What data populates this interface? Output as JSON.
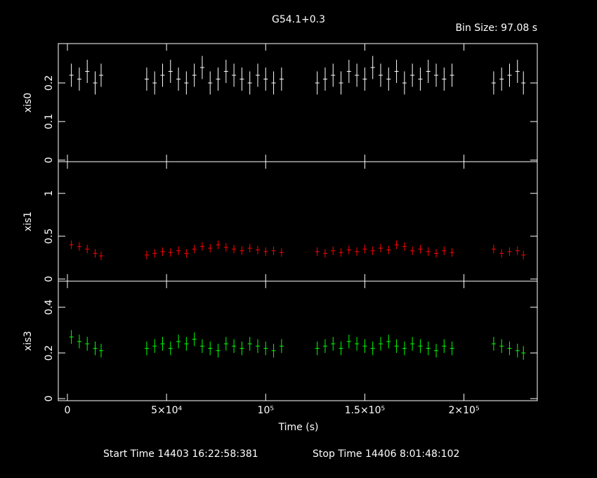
{
  "chart_data": [
    {
      "type": "errorbar",
      "title": "G54.1+0.3",
      "subtitle": "Bin Size: 97.08 s",
      "ylabel": "xis0",
      "color": "#ffffff",
      "xlim": [
        -4600,
        237000
      ],
      "ylim": [
        -0.004,
        0.302
      ],
      "yticks": [
        0,
        0.1,
        0.2
      ],
      "x": [
        2000,
        6000,
        10000,
        14000,
        17000,
        40000,
        44000,
        48000,
        52000,
        56000,
        60000,
        64000,
        68000,
        72000,
        76000,
        80000,
        84000,
        88000,
        92000,
        96000,
        100000,
        104000,
        108000,
        126000,
        130000,
        134000,
        138000,
        142000,
        146000,
        150000,
        154000,
        158000,
        162000,
        166000,
        170000,
        174000,
        178000,
        182000,
        186000,
        190000,
        194000,
        215000,
        219000,
        223000,
        227000,
        230000
      ],
      "values": [
        0.22,
        0.21,
        0.23,
        0.2,
        0.22,
        0.21,
        0.2,
        0.22,
        0.23,
        0.21,
        0.2,
        0.22,
        0.24,
        0.2,
        0.21,
        0.23,
        0.22,
        0.21,
        0.2,
        0.22,
        0.21,
        0.2,
        0.21,
        0.2,
        0.21,
        0.22,
        0.2,
        0.23,
        0.22,
        0.21,
        0.24,
        0.22,
        0.21,
        0.23,
        0.2,
        0.22,
        0.21,
        0.23,
        0.22,
        0.21,
        0.22,
        0.2,
        0.21,
        0.22,
        0.23,
        0.2
      ],
      "errors": [
        0.03,
        0.03,
        0.03,
        0.03,
        0.03,
        0.03,
        0.03,
        0.03,
        0.03,
        0.03,
        0.03,
        0.03,
        0.03,
        0.03,
        0.03,
        0.03,
        0.03,
        0.03,
        0.03,
        0.03,
        0.03,
        0.03,
        0.03,
        0.03,
        0.03,
        0.03,
        0.03,
        0.03,
        0.03,
        0.03,
        0.03,
        0.03,
        0.03,
        0.03,
        0.03,
        0.03,
        0.03,
        0.03,
        0.03,
        0.03,
        0.03,
        0.03,
        0.03,
        0.03,
        0.03,
        0.03
      ]
    },
    {
      "type": "errorbar",
      "ylabel": "xis1",
      "color": "#ff0000",
      "xlim": [
        -4600,
        237000
      ],
      "ylim": [
        -0.025,
        1.37
      ],
      "yticks": [
        0,
        0.5,
        1
      ],
      "x": [
        2000,
        6000,
        10000,
        14000,
        17000,
        40000,
        44000,
        48000,
        52000,
        56000,
        60000,
        64000,
        68000,
        72000,
        76000,
        80000,
        84000,
        88000,
        92000,
        96000,
        100000,
        104000,
        108000,
        126000,
        130000,
        134000,
        138000,
        142000,
        146000,
        150000,
        154000,
        158000,
        162000,
        166000,
        170000,
        174000,
        178000,
        182000,
        186000,
        190000,
        194000,
        215000,
        219000,
        223000,
        227000,
        230000
      ],
      "values": [
        0.4,
        0.38,
        0.35,
        0.3,
        0.27,
        0.28,
        0.3,
        0.32,
        0.31,
        0.33,
        0.3,
        0.35,
        0.38,
        0.36,
        0.4,
        0.37,
        0.35,
        0.33,
        0.36,
        0.34,
        0.32,
        0.33,
        0.31,
        0.32,
        0.3,
        0.33,
        0.31,
        0.34,
        0.32,
        0.35,
        0.33,
        0.36,
        0.34,
        0.4,
        0.38,
        0.33,
        0.35,
        0.32,
        0.3,
        0.33,
        0.31,
        0.35,
        0.3,
        0.32,
        0.33,
        0.28
      ],
      "errors": [
        0.05,
        0.05,
        0.05,
        0.05,
        0.05,
        0.05,
        0.05,
        0.05,
        0.05,
        0.05,
        0.05,
        0.05,
        0.05,
        0.05,
        0.05,
        0.05,
        0.05,
        0.05,
        0.05,
        0.05,
        0.05,
        0.05,
        0.05,
        0.05,
        0.05,
        0.05,
        0.05,
        0.05,
        0.05,
        0.05,
        0.05,
        0.05,
        0.05,
        0.05,
        0.05,
        0.05,
        0.05,
        0.05,
        0.05,
        0.05,
        0.05,
        0.05,
        0.05,
        0.05,
        0.05,
        0.05
      ]
    },
    {
      "type": "errorbar",
      "ylabel": "xis3",
      "color": "#00ff00",
      "xlabel": "Time (s)",
      "annotations": [
        "Start Time 14403 16:22:58:381",
        "Stop Time 14406  8:01:48:102"
      ],
      "xlim": [
        -4600,
        237000
      ],
      "ylim": [
        -0.009,
        0.514
      ],
      "yticks": [
        0,
        0.2,
        0.4
      ],
      "xticks": [
        0,
        {
          "value": 50000,
          "label": "5×10⁴"
        },
        {
          "value": 100000,
          "label": "10⁵"
        },
        {
          "value": 150000,
          "label": "1.5×10⁵"
        },
        {
          "value": 200000,
          "label": "2×10⁵"
        }
      ],
      "x": [
        2000,
        6000,
        10000,
        14000,
        17000,
        40000,
        44000,
        48000,
        52000,
        56000,
        60000,
        64000,
        68000,
        72000,
        76000,
        80000,
        84000,
        88000,
        92000,
        96000,
        100000,
        104000,
        108000,
        126000,
        130000,
        134000,
        138000,
        142000,
        146000,
        150000,
        154000,
        158000,
        162000,
        166000,
        170000,
        174000,
        178000,
        182000,
        186000,
        190000,
        194000,
        215000,
        219000,
        223000,
        227000,
        230000
      ],
      "values": [
        0.27,
        0.25,
        0.24,
        0.22,
        0.21,
        0.22,
        0.23,
        0.24,
        0.22,
        0.25,
        0.24,
        0.26,
        0.23,
        0.22,
        0.21,
        0.24,
        0.23,
        0.22,
        0.24,
        0.23,
        0.22,
        0.21,
        0.23,
        0.22,
        0.23,
        0.24,
        0.22,
        0.25,
        0.24,
        0.23,
        0.22,
        0.24,
        0.25,
        0.23,
        0.22,
        0.24,
        0.23,
        0.22,
        0.21,
        0.23,
        0.22,
        0.24,
        0.23,
        0.22,
        0.21,
        0.2
      ],
      "errors": [
        0.03,
        0.03,
        0.03,
        0.03,
        0.03,
        0.03,
        0.03,
        0.03,
        0.03,
        0.03,
        0.03,
        0.03,
        0.03,
        0.03,
        0.03,
        0.03,
        0.03,
        0.03,
        0.03,
        0.03,
        0.03,
        0.03,
        0.03,
        0.03,
        0.03,
        0.03,
        0.03,
        0.03,
        0.03,
        0.03,
        0.03,
        0.03,
        0.03,
        0.03,
        0.03,
        0.03,
        0.03,
        0.03,
        0.03,
        0.03,
        0.03,
        0.03,
        0.03,
        0.03,
        0.03,
        0.03
      ]
    }
  ]
}
